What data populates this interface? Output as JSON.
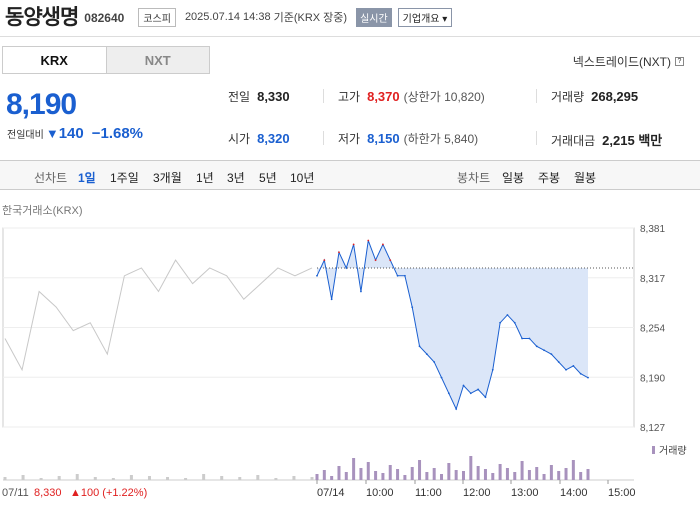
{
  "header": {
    "name": "동양생명",
    "code": "082640",
    "market": "코스피",
    "datetime": "2025.07.14 14:38",
    "basis": "기준(KRX 장중)",
    "realtime": "실시간",
    "company_info": "기업개요",
    "company_info_arrow": "▾"
  },
  "tabs": [
    "KRX",
    "NXT"
  ],
  "nxt_link": "넥스트레이드(NXT)",
  "nxt_help": "?",
  "price": {
    "current": "8,190",
    "change_label": "전일대비",
    "change_symbol": "▼",
    "change": "140",
    "change_pct": "−1.68%"
  },
  "stats": {
    "prev_label": "전일",
    "prev": "8,330",
    "high_label": "고가",
    "high": "8,370",
    "upper_limit": "(상한가 10,820)",
    "volume_label": "거래량",
    "volume": "268,295",
    "open_label": "시가",
    "open": "8,320",
    "low_label": "저가",
    "low": "8,150",
    "lower_limit": "(하한가 5,840)",
    "amount_label": "거래대금",
    "amount": "2,215 백만"
  },
  "toolbar": {
    "line_chart_label": "선차트",
    "periods": [
      "1일",
      "1주일",
      "3개월",
      "1년",
      "3년",
      "5년",
      "10년"
    ],
    "candle_label": "봉차트",
    "candles": [
      "일봉",
      "주봉",
      "월봉"
    ]
  },
  "source_label": "한국거래소(KRX)",
  "colors": {
    "up": "#e02020",
    "down": "#1a5fd0",
    "fill": "#dbe6f8",
    "volume": "#a892bd"
  },
  "chart_data": {
    "type": "line",
    "y_ticks": [
      "8,381",
      "8,317",
      "8,254",
      "8,190",
      "8,127"
    ],
    "ylim": [
      8127,
      8381
    ],
    "x_ticks": [
      "07/14",
      "10:00",
      "11:00",
      "12:00",
      "13:00",
      "14:00",
      "15:00"
    ],
    "prev_close": 8330,
    "prev_day_note": {
      "date": "07/11",
      "close": "8,330",
      "change": "▲100",
      "pct": "(+1.22%)"
    },
    "volume_legend": "거래량",
    "series": [
      {
        "values": [
          8240,
          8200,
          8300,
          8280,
          8250,
          8260,
          8220,
          8320,
          8330,
          8300,
          8340,
          8310,
          8330,
          8320,
          8290,
          8310,
          8330,
          8320,
          8330
        ],
        "style": "previous day"
      },
      {
        "values": [
          8320,
          8340,
          8290,
          8350,
          8330,
          8360,
          8300,
          8365,
          8340,
          8360,
          8340,
          8320,
          8320,
          8280,
          8230,
          8220,
          8210,
          8190,
          8170,
          8150,
          8180,
          8170,
          8175,
          8165,
          8200,
          8260,
          8270,
          8260,
          8240,
          8240,
          8230,
          8225,
          8220,
          8210,
          8200,
          8205,
          8195,
          8190
        ],
        "style": "today"
      }
    ]
  }
}
